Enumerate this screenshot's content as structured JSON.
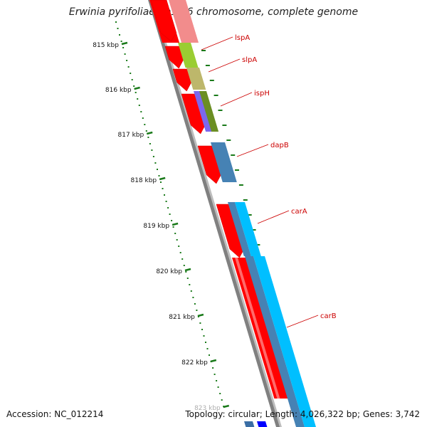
{
  "title": "Erwinia pyrifoliae Ep1/96 chromosome, complete genome",
  "footer": {
    "accession": "Accession: NC_012214",
    "topology": "Topology: circular; Length: 4,026,322 bp; Genes: 3,742"
  },
  "ticks": [
    "815 kbp",
    "816 kbp",
    "817 kbp",
    "818 kbp",
    "819 kbp",
    "820 kbp",
    "821 kbp",
    "822 kbp",
    "823 kbp"
  ],
  "genes": [
    "lspA",
    "slpA",
    "ispH",
    "dapB",
    "carA",
    "carB"
  ],
  "colors": {
    "cds": "#ff0000",
    "backbone": "#808080",
    "ticks": "#1a7a1a",
    "labels": "#cc0000",
    "gene_steelblue": "#4682b4",
    "gene_cyan": "#00bfff"
  }
}
